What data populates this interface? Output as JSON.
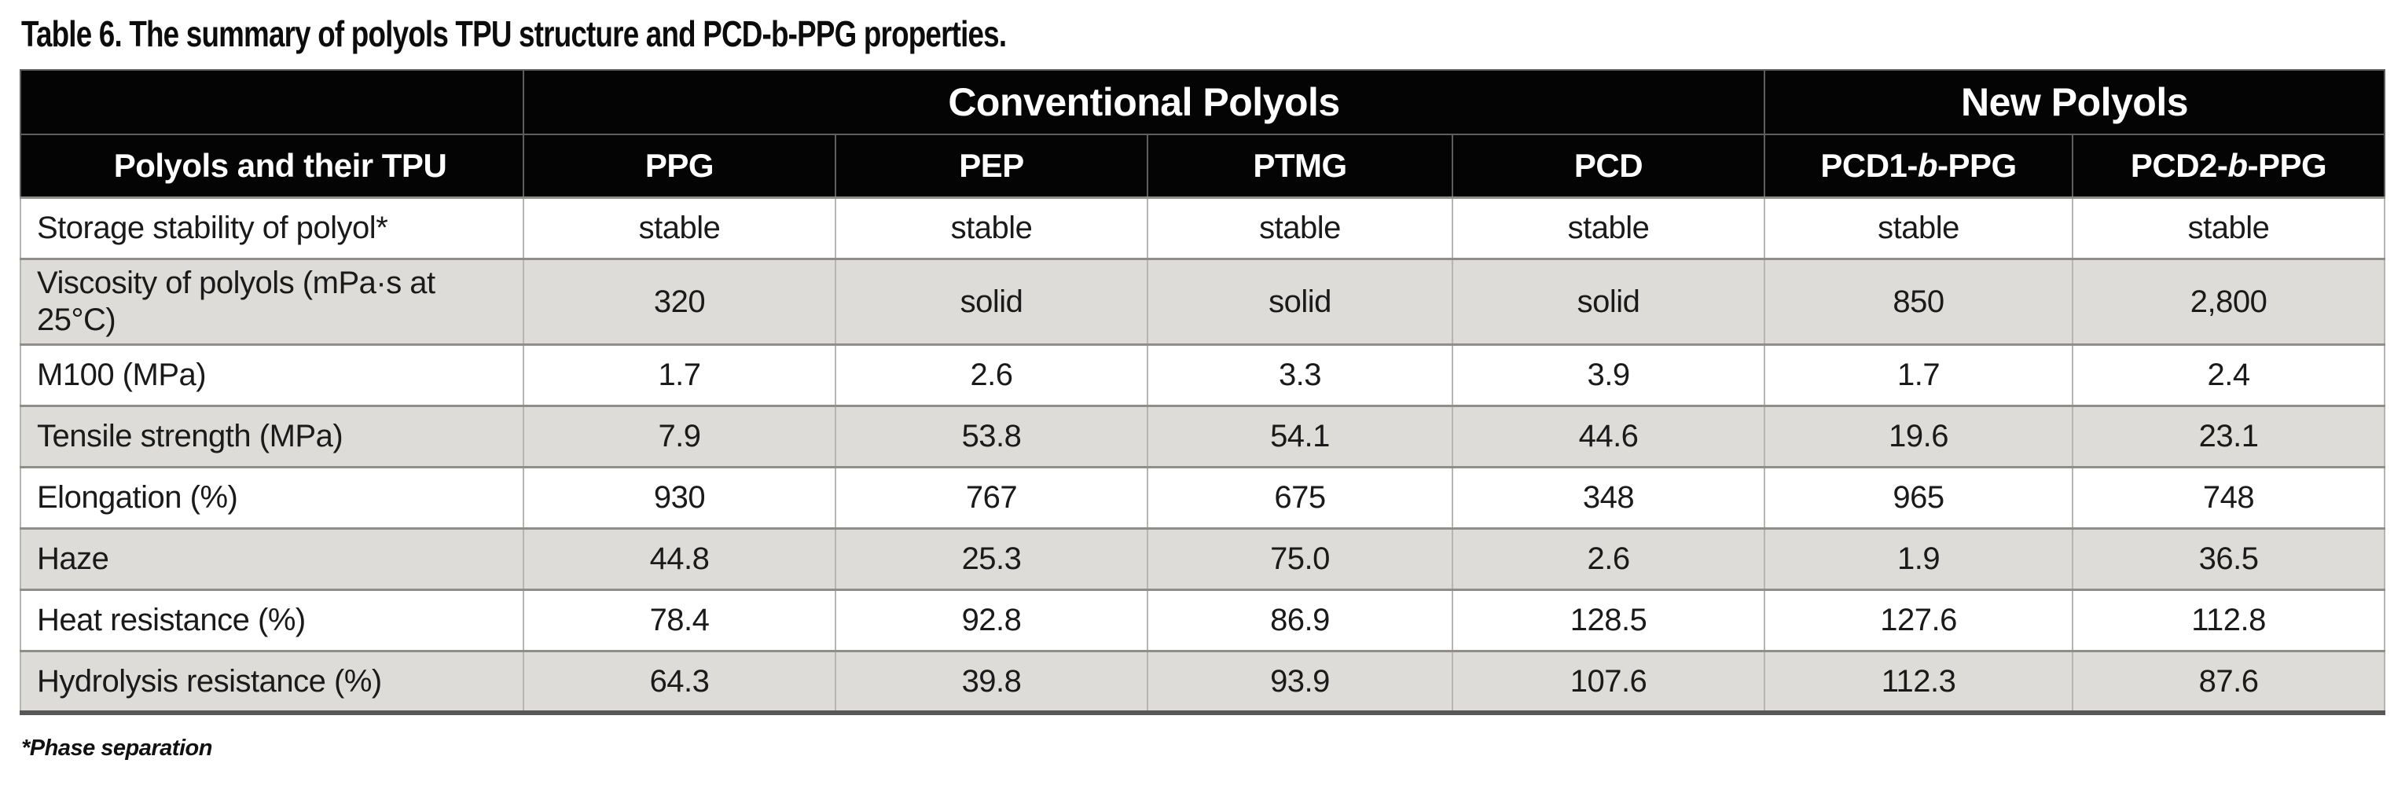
{
  "title": "Table 6. The summary of polyols TPU structure and PCD-b-PPG properties.",
  "footnote": "*Phase separation",
  "colors": {
    "header_bg": "#040404",
    "header_text": "#ffffff",
    "shaded_row_bg": "#dedcd9",
    "body_text": "#1a1a1a",
    "grid_line": "#908e8b"
  },
  "table": {
    "corner_label": "Polyols and their TPU",
    "groups": [
      {
        "label": "Conventional Polyols",
        "colspan": 4
      },
      {
        "label": "New Polyols",
        "colspan": 2
      }
    ],
    "columns": [
      {
        "id": "ppg",
        "runs": [
          {
            "t": "PPG"
          }
        ]
      },
      {
        "id": "pep",
        "runs": [
          {
            "t": "PEP"
          }
        ]
      },
      {
        "id": "ptmg",
        "runs": [
          {
            "t": "PTMG"
          }
        ]
      },
      {
        "id": "pcd",
        "runs": [
          {
            "t": "PCD"
          }
        ]
      },
      {
        "id": "pcd1-b-ppg",
        "runs": [
          {
            "t": "PCD1-"
          },
          {
            "t": "b",
            "italic": true
          },
          {
            "t": "-PPG"
          }
        ]
      },
      {
        "id": "pcd2-b-ppg",
        "runs": [
          {
            "t": "PCD2-"
          },
          {
            "t": "b",
            "italic": true
          },
          {
            "t": "-PPG"
          }
        ]
      }
    ],
    "rows": [
      {
        "label": "Storage stability of polyol*",
        "shaded": false,
        "values": [
          "stable",
          "stable",
          "stable",
          "stable",
          "stable",
          "stable"
        ]
      },
      {
        "label": "Viscosity of polyols (mPa·s at 25°C)",
        "shaded": true,
        "values": [
          "320",
          "solid",
          "solid",
          "solid",
          "850",
          "2,800"
        ]
      },
      {
        "label": "M100 (MPa)",
        "shaded": false,
        "values": [
          "1.7",
          "2.6",
          "3.3",
          "3.9",
          "1.7",
          "2.4"
        ]
      },
      {
        "label": "Tensile strength (MPa)",
        "shaded": true,
        "values": [
          "7.9",
          "53.8",
          "54.1",
          "44.6",
          "19.6",
          "23.1"
        ]
      },
      {
        "label": "Elongation (%)",
        "shaded": false,
        "values": [
          "930",
          "767",
          "675",
          "348",
          "965",
          "748"
        ]
      },
      {
        "label": "Haze",
        "shaded": true,
        "values": [
          "44.8",
          "25.3",
          "75.0",
          "2.6",
          "1.9",
          "36.5"
        ]
      },
      {
        "label": "Heat resistance (%)",
        "shaded": false,
        "values": [
          "78.4",
          "92.8",
          "86.9",
          "128.5",
          "127.6",
          "112.8"
        ]
      },
      {
        "label": "Hydrolysis resistance (%)",
        "shaded": true,
        "values": [
          "64.3",
          "39.8",
          "93.9",
          "107.6",
          "112.3",
          "87.6"
        ]
      }
    ]
  }
}
